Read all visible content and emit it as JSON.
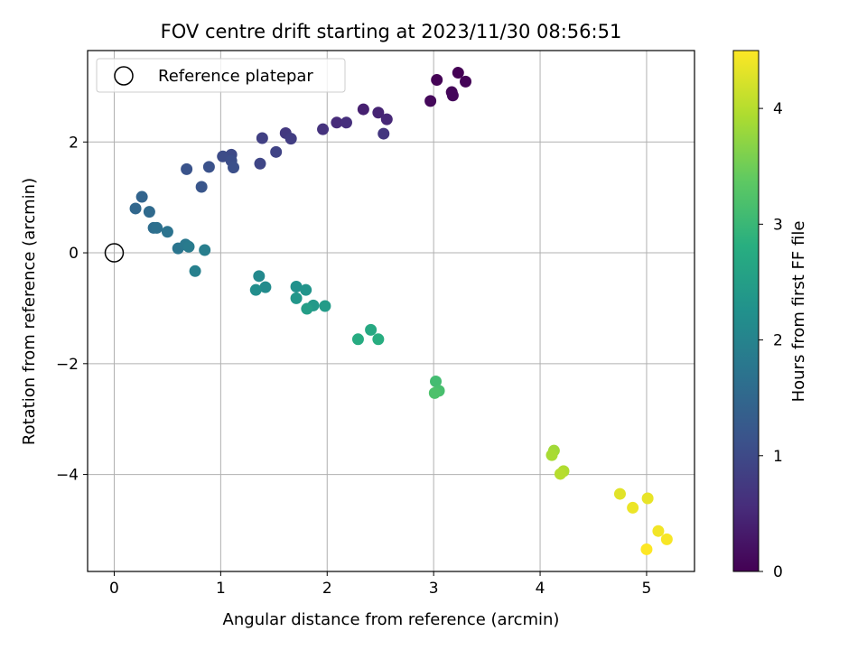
{
  "chart_data": {
    "type": "scatter",
    "title": "FOV centre drift starting at 2023/11/30 08:56:51",
    "xlabel": "Angular distance from reference (arcmin)",
    "ylabel": "Rotation from reference (arcmin)",
    "xlim": [
      -0.25,
      5.45
    ],
    "ylim": [
      -5.75,
      3.65
    ],
    "xticks": [
      0,
      1,
      2,
      3,
      4,
      5
    ],
    "yticks": [
      -4,
      -2,
      0,
      2
    ],
    "grid": true,
    "legend": {
      "placement": "top-left",
      "label": "Reference platepar"
    },
    "reference_point": {
      "x": 0,
      "y": 0
    },
    "colorbar": {
      "label": "Hours from first FF file",
      "range": [
        0,
        4.5
      ],
      "ticks": [
        0,
        1,
        2,
        3,
        4
      ],
      "colormap": "viridis"
    },
    "points": [
      {
        "x": 3.23,
        "y": 3.25,
        "t": 0.0
      },
      {
        "x": 3.03,
        "y": 3.12,
        "t": 0.02
      },
      {
        "x": 3.3,
        "y": 3.09,
        "t": 0.04
      },
      {
        "x": 3.17,
        "y": 2.9,
        "t": 0.06
      },
      {
        "x": 3.18,
        "y": 2.84,
        "t": 0.08
      },
      {
        "x": 2.97,
        "y": 2.74,
        "t": 0.1
      },
      {
        "x": 2.34,
        "y": 2.59,
        "t": 0.4
      },
      {
        "x": 2.48,
        "y": 2.53,
        "t": 0.45
      },
      {
        "x": 2.56,
        "y": 2.41,
        "t": 0.5
      },
      {
        "x": 2.09,
        "y": 2.35,
        "t": 0.55
      },
      {
        "x": 2.18,
        "y": 2.35,
        "t": 0.6
      },
      {
        "x": 1.96,
        "y": 2.23,
        "t": 0.65
      },
      {
        "x": 2.53,
        "y": 2.15,
        "t": 0.7
      },
      {
        "x": 1.61,
        "y": 2.16,
        "t": 0.75
      },
      {
        "x": 1.66,
        "y": 2.06,
        "t": 0.8
      },
      {
        "x": 1.39,
        "y": 2.07,
        "t": 0.85
      },
      {
        "x": 1.52,
        "y": 1.82,
        "t": 0.9
      },
      {
        "x": 1.37,
        "y": 1.61,
        "t": 0.95
      },
      {
        "x": 1.1,
        "y": 1.77,
        "t": 1.0
      },
      {
        "x": 1.02,
        "y": 1.74,
        "t": 1.03
      },
      {
        "x": 1.1,
        "y": 1.66,
        "t": 1.06
      },
      {
        "x": 1.12,
        "y": 1.54,
        "t": 1.09
      },
      {
        "x": 0.89,
        "y": 1.55,
        "t": 1.12
      },
      {
        "x": 0.68,
        "y": 1.51,
        "t": 1.15
      },
      {
        "x": 0.82,
        "y": 1.19,
        "t": 1.2
      },
      {
        "x": 0.26,
        "y": 1.01,
        "t": 1.45
      },
      {
        "x": 0.2,
        "y": 0.8,
        "t": 1.5
      },
      {
        "x": 0.33,
        "y": 0.74,
        "t": 1.55
      },
      {
        "x": 0.37,
        "y": 0.45,
        "t": 1.6
      },
      {
        "x": 0.4,
        "y": 0.45,
        "t": 1.65
      },
      {
        "x": 0.5,
        "y": 0.38,
        "t": 1.7
      },
      {
        "x": 0.6,
        "y": 0.08,
        "t": 1.75
      },
      {
        "x": 0.67,
        "y": 0.15,
        "t": 1.8
      },
      {
        "x": 0.7,
        "y": 0.11,
        "t": 1.85
      },
      {
        "x": 0.85,
        "y": 0.05,
        "t": 1.9
      },
      {
        "x": 0.76,
        "y": -0.33,
        "t": 1.95
      },
      {
        "x": 1.36,
        "y": -0.42,
        "t": 2.1
      },
      {
        "x": 1.42,
        "y": -0.62,
        "t": 2.15
      },
      {
        "x": 1.33,
        "y": -0.67,
        "t": 2.2
      },
      {
        "x": 1.71,
        "y": -0.61,
        "t": 2.25
      },
      {
        "x": 1.8,
        "y": -0.67,
        "t": 2.3
      },
      {
        "x": 1.71,
        "y": -0.82,
        "t": 2.35
      },
      {
        "x": 1.87,
        "y": -0.95,
        "t": 2.4
      },
      {
        "x": 1.98,
        "y": -0.96,
        "t": 2.45
      },
      {
        "x": 1.81,
        "y": -1.01,
        "t": 2.5
      },
      {
        "x": 2.41,
        "y": -1.39,
        "t": 2.7
      },
      {
        "x": 2.29,
        "y": -1.56,
        "t": 2.75
      },
      {
        "x": 2.48,
        "y": -1.56,
        "t": 2.8
      },
      {
        "x": 3.02,
        "y": -2.32,
        "t": 3.1
      },
      {
        "x": 3.05,
        "y": -2.49,
        "t": 3.15
      },
      {
        "x": 3.01,
        "y": -2.53,
        "t": 3.2
      },
      {
        "x": 4.13,
        "y": -3.57,
        "t": 3.85
      },
      {
        "x": 4.11,
        "y": -3.65,
        "t": 3.9
      },
      {
        "x": 4.22,
        "y": -3.94,
        "t": 3.95
      },
      {
        "x": 4.19,
        "y": -3.99,
        "t": 4.0
      },
      {
        "x": 4.75,
        "y": -4.35,
        "t": 4.3
      },
      {
        "x": 5.01,
        "y": -4.43,
        "t": 4.35
      },
      {
        "x": 4.87,
        "y": -4.6,
        "t": 4.38
      },
      {
        "x": 5.11,
        "y": -5.02,
        "t": 4.42
      },
      {
        "x": 5.19,
        "y": -5.17,
        "t": 4.46
      },
      {
        "x": 5.0,
        "y": -5.35,
        "t": 4.5
      }
    ]
  }
}
